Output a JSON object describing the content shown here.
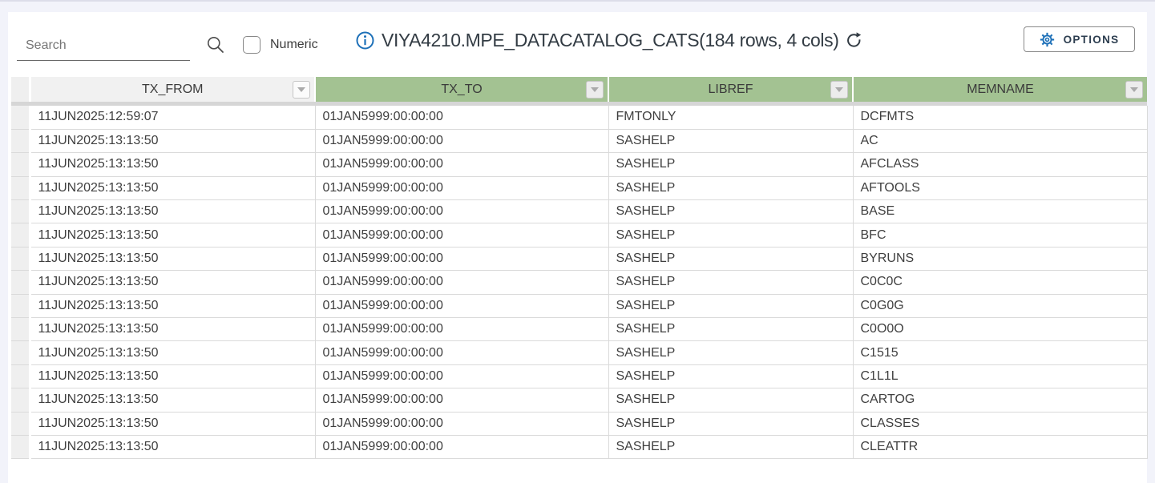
{
  "toolbar": {
    "search_placeholder": "Search",
    "numeric_label": "Numeric",
    "title": "VIYA4210.MPE_DATACATALOG_CATS(184 rows, 4 cols)",
    "options_label": "OPTIONS"
  },
  "icons": {
    "search": "magnifier",
    "info": "info-circle",
    "refresh": "circular-arrow",
    "options": "gear",
    "column_filter": "dropdown-triangle"
  },
  "colors": {
    "page_background": "#f2f3fa",
    "header_green": "#a3c292",
    "header_gray": "#f1f1f1",
    "accent_blue": "#1d70b8",
    "options_text": "#2d3e50",
    "grid_line": "#dadada"
  },
  "table": {
    "columns": [
      {
        "label": "TX_FROM"
      },
      {
        "label": "TX_TO"
      },
      {
        "label": "LIBREF"
      },
      {
        "label": "MEMNAME"
      }
    ],
    "rows": [
      [
        "11JUN2025:12:59:07",
        "01JAN5999:00:00:00",
        "FMTONLY",
        "DCFMTS"
      ],
      [
        "11JUN2025:13:13:50",
        "01JAN5999:00:00:00",
        "SASHELP",
        "AC"
      ],
      [
        "11JUN2025:13:13:50",
        "01JAN5999:00:00:00",
        "SASHELP",
        "AFCLASS"
      ],
      [
        "11JUN2025:13:13:50",
        "01JAN5999:00:00:00",
        "SASHELP",
        "AFTOOLS"
      ],
      [
        "11JUN2025:13:13:50",
        "01JAN5999:00:00:00",
        "SASHELP",
        "BASE"
      ],
      [
        "11JUN2025:13:13:50",
        "01JAN5999:00:00:00",
        "SASHELP",
        "BFC"
      ],
      [
        "11JUN2025:13:13:50",
        "01JAN5999:00:00:00",
        "SASHELP",
        "BYRUNS"
      ],
      [
        "11JUN2025:13:13:50",
        "01JAN5999:00:00:00",
        "SASHELP",
        "C0C0C"
      ],
      [
        "11JUN2025:13:13:50",
        "01JAN5999:00:00:00",
        "SASHELP",
        "C0G0G"
      ],
      [
        "11JUN2025:13:13:50",
        "01JAN5999:00:00:00",
        "SASHELP",
        "C0O0O"
      ],
      [
        "11JUN2025:13:13:50",
        "01JAN5999:00:00:00",
        "SASHELP",
        "C1515"
      ],
      [
        "11JUN2025:13:13:50",
        "01JAN5999:00:00:00",
        "SASHELP",
        "C1L1L"
      ],
      [
        "11JUN2025:13:13:50",
        "01JAN5999:00:00:00",
        "SASHELP",
        "CARTOG"
      ],
      [
        "11JUN2025:13:13:50",
        "01JAN5999:00:00:00",
        "SASHELP",
        "CLASSES"
      ],
      [
        "11JUN2025:13:13:50",
        "01JAN5999:00:00:00",
        "SASHELP",
        "CLEATTR"
      ]
    ]
  }
}
